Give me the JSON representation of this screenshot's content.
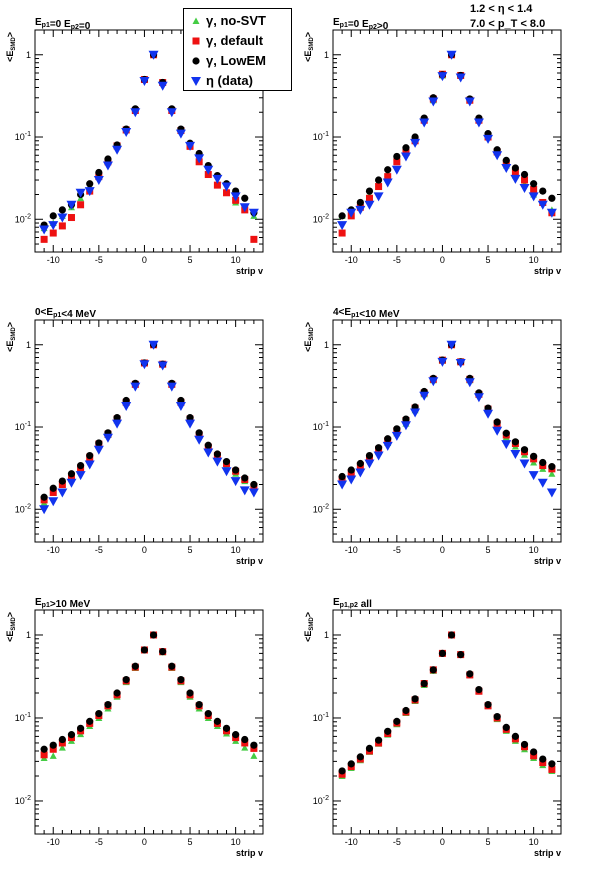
{
  "kinematics": {
    "line1": "1.2 < η < 1.4",
    "line2": "7.0 < p_T < 8.0"
  },
  "legend": [
    {
      "label": "γ, no-SVT",
      "color": "#44cc44",
      "marker": "triangle-up"
    },
    {
      "label": "γ, default",
      "color": "#ee1111",
      "marker": "square"
    },
    {
      "label": "γ, LowEM",
      "color": "#000000",
      "marker": "circle"
    },
    {
      "label": "η (data)",
      "color": "#1133ee",
      "marker": "triangle-down"
    }
  ],
  "chart_data": [
    {
      "type": "scatter",
      "title": "E_p1=0 E_p2=0",
      "xlabel": "strip v",
      "ylabel": "<E_SMD>",
      "xlim": [
        -12,
        13
      ],
      "ylim": [
        0.004,
        2.0
      ],
      "yscale": "log",
      "xticks": [
        -10,
        -5,
        0,
        5,
        10
      ],
      "x": [
        -11,
        -10,
        -9,
        -8,
        -7,
        -6,
        -5,
        -4,
        -3,
        -2,
        -1,
        0,
        1,
        2,
        3,
        4,
        5,
        6,
        7,
        8,
        9,
        10,
        11,
        12
      ],
      "series": [
        {
          "name": "γ, no-SVT",
          "values": [
            0.0078,
            0.009,
            0.011,
            0.014,
            0.018,
            0.025,
            0.035,
            0.05,
            0.08,
            0.12,
            0.22,
            0.5,
            1.0,
            0.46,
            0.21,
            0.12,
            0.079,
            0.053,
            0.037,
            0.027,
            0.021,
            0.016,
            0.013,
            0.011
          ]
        },
        {
          "name": "γ, default",
          "values": [
            0.0057,
            0.0068,
            0.0083,
            0.0105,
            0.015,
            0.022,
            0.033,
            0.05,
            0.078,
            0.122,
            0.21,
            0.5,
            1.0,
            0.46,
            0.21,
            0.12,
            0.077,
            0.05,
            0.035,
            0.026,
            0.021,
            0.017,
            0.013,
            0.0057
          ]
        },
        {
          "name": "γ, LowEM",
          "values": [
            0.0085,
            0.011,
            0.013,
            0.015,
            0.02,
            0.027,
            0.037,
            0.054,
            0.08,
            0.125,
            0.22,
            0.5,
            1.0,
            0.46,
            0.22,
            0.125,
            0.084,
            0.063,
            0.045,
            0.034,
            0.027,
            0.022,
            0.018,
            0.012
          ]
        },
        {
          "name": "η (data)",
          "values": [
            0.0075,
            0.0085,
            0.0105,
            0.015,
            0.021,
            0.022,
            0.03,
            0.045,
            0.07,
            0.115,
            0.2,
            0.48,
            1.0,
            0.42,
            0.2,
            0.11,
            0.078,
            0.055,
            0.04,
            0.031,
            0.025,
            0.019,
            0.014,
            0.012
          ]
        }
      ]
    },
    {
      "type": "scatter",
      "title": "E_p1=0 E_p2>0",
      "xlabel": "strip v",
      "ylabel": "<E_SMD>",
      "xlim": [
        -12,
        13
      ],
      "ylim": [
        0.004,
        2.0
      ],
      "yscale": "log",
      "xticks": [
        -10,
        -5,
        0,
        5,
        10
      ],
      "x": [
        -11,
        -10,
        -9,
        -8,
        -7,
        -6,
        -5,
        -4,
        -3,
        -2,
        -1,
        0,
        1,
        2,
        3,
        4,
        5,
        6,
        7,
        8,
        9,
        10,
        11,
        12
      ],
      "series": [
        {
          "name": "γ, no-SVT",
          "values": [
            0.011,
            0.013,
            0.016,
            0.02,
            0.027,
            0.036,
            0.05,
            0.065,
            0.09,
            0.16,
            0.28,
            0.56,
            1.0,
            0.56,
            0.28,
            0.165,
            0.1,
            0.065,
            0.045,
            0.034,
            0.027,
            0.02,
            0.016,
            0.013
          ]
        },
        {
          "name": "γ, default",
          "values": [
            0.0068,
            0.011,
            0.014,
            0.018,
            0.025,
            0.033,
            0.05,
            0.065,
            0.09,
            0.16,
            0.29,
            0.58,
            1.0,
            0.56,
            0.28,
            0.16,
            0.1,
            0.066,
            0.048,
            0.037,
            0.03,
            0.023,
            0.016,
            0.012
          ]
        },
        {
          "name": "γ, LowEM",
          "values": [
            0.011,
            0.013,
            0.016,
            0.022,
            0.03,
            0.04,
            0.058,
            0.074,
            0.1,
            0.17,
            0.3,
            0.57,
            1.0,
            0.56,
            0.29,
            0.17,
            0.11,
            0.07,
            0.052,
            0.042,
            0.035,
            0.027,
            0.022,
            0.018
          ]
        },
        {
          "name": "η (data)",
          "values": [
            0.0085,
            0.012,
            0.013,
            0.015,
            0.019,
            0.028,
            0.04,
            0.058,
            0.085,
            0.15,
            0.27,
            0.55,
            1.0,
            0.53,
            0.27,
            0.15,
            0.095,
            0.06,
            0.042,
            0.031,
            0.024,
            0.019,
            0.015,
            0.012
          ]
        }
      ]
    },
    {
      "type": "scatter",
      "title": "0<E_p1<4 MeV",
      "xlabel": "strip v",
      "ylabel": "<E_SMD>",
      "xlim": [
        -12,
        13
      ],
      "ylim": [
        0.004,
        2.0
      ],
      "yscale": "log",
      "xticks": [
        -10,
        -5,
        0,
        5,
        10
      ],
      "x": [
        -11,
        -10,
        -9,
        -8,
        -7,
        -6,
        -5,
        -4,
        -3,
        -2,
        -1,
        0,
        1,
        2,
        3,
        4,
        5,
        6,
        7,
        8,
        9,
        10,
        11,
        12
      ],
      "series": [
        {
          "name": "γ, no-SVT",
          "values": [
            0.012,
            0.016,
            0.02,
            0.025,
            0.031,
            0.042,
            0.06,
            0.08,
            0.12,
            0.2,
            0.33,
            0.6,
            1.0,
            0.58,
            0.33,
            0.2,
            0.125,
            0.078,
            0.055,
            0.043,
            0.034,
            0.027,
            0.022,
            0.018
          ]
        },
        {
          "name": "γ, default",
          "values": [
            0.013,
            0.016,
            0.02,
            0.025,
            0.032,
            0.043,
            0.062,
            0.082,
            0.125,
            0.2,
            0.33,
            0.6,
            1.0,
            0.58,
            0.33,
            0.2,
            0.125,
            0.08,
            0.057,
            0.045,
            0.036,
            0.029,
            0.023,
            0.019
          ]
        },
        {
          "name": "γ, LowEM",
          "values": [
            0.014,
            0.018,
            0.022,
            0.027,
            0.034,
            0.045,
            0.064,
            0.085,
            0.13,
            0.21,
            0.34,
            0.6,
            1.0,
            0.58,
            0.34,
            0.21,
            0.13,
            0.085,
            0.06,
            0.047,
            0.038,
            0.03,
            0.024,
            0.02
          ]
        },
        {
          "name": "η (data)",
          "values": [
            0.01,
            0.0125,
            0.016,
            0.021,
            0.026,
            0.035,
            0.053,
            0.074,
            0.11,
            0.18,
            0.31,
            0.58,
            1.0,
            0.56,
            0.31,
            0.18,
            0.11,
            0.07,
            0.049,
            0.038,
            0.029,
            0.022,
            0.017,
            0.016
          ]
        }
      ]
    },
    {
      "type": "scatter",
      "title": "4<E_p1<10 MeV",
      "xlabel": "strip v",
      "ylabel": "<E_SMD>",
      "xlim": [
        -12,
        13
      ],
      "ylim": [
        0.004,
        2.0
      ],
      "yscale": "log",
      "xticks": [
        -10,
        -5,
        0,
        5,
        10
      ],
      "x": [
        -11,
        -10,
        -9,
        -8,
        -7,
        -6,
        -5,
        -4,
        -3,
        -2,
        -1,
        0,
        1,
        2,
        3,
        4,
        5,
        6,
        7,
        8,
        9,
        10,
        11,
        12
      ],
      "series": [
        {
          "name": "γ, no-SVT",
          "values": [
            0.022,
            0.027,
            0.032,
            0.04,
            0.05,
            0.064,
            0.084,
            0.11,
            0.16,
            0.25,
            0.37,
            0.64,
            1.0,
            0.62,
            0.37,
            0.25,
            0.16,
            0.105,
            0.075,
            0.058,
            0.046,
            0.037,
            0.031,
            0.027
          ]
        },
        {
          "name": "γ, default",
          "values": [
            0.023,
            0.028,
            0.034,
            0.042,
            0.053,
            0.068,
            0.09,
            0.12,
            0.17,
            0.26,
            0.38,
            0.65,
            1.0,
            0.62,
            0.38,
            0.25,
            0.165,
            0.11,
            0.08,
            0.063,
            0.05,
            0.041,
            0.034,
            0.031
          ]
        },
        {
          "name": "γ, LowEM",
          "values": [
            0.025,
            0.03,
            0.036,
            0.045,
            0.056,
            0.072,
            0.095,
            0.125,
            0.175,
            0.27,
            0.39,
            0.65,
            1.0,
            0.62,
            0.39,
            0.26,
            0.17,
            0.115,
            0.084,
            0.066,
            0.053,
            0.044,
            0.037,
            0.033
          ]
        },
        {
          "name": "η (data)",
          "values": [
            0.02,
            0.023,
            0.028,
            0.036,
            0.045,
            0.059,
            0.078,
            0.105,
            0.15,
            0.24,
            0.36,
            0.62,
            1.0,
            0.6,
            0.35,
            0.23,
            0.145,
            0.09,
            0.062,
            0.047,
            0.036,
            0.026,
            0.021,
            0.016
          ]
        }
      ]
    },
    {
      "type": "scatter",
      "title": "E_p1>10 MeV",
      "xlabel": "strip v",
      "ylabel": "<E_SMD>",
      "xlim": [
        -12,
        13
      ],
      "ylim": [
        0.004,
        2.0
      ],
      "yscale": "log",
      "xticks": [
        -10,
        -5,
        0,
        5,
        10
      ],
      "x": [
        -11,
        -10,
        -9,
        -8,
        -7,
        -6,
        -5,
        -4,
        -3,
        -2,
        -1,
        0,
        1,
        2,
        3,
        4,
        5,
        6,
        7,
        8,
        9,
        10,
        11,
        12
      ],
      "series": [
        {
          "name": "γ, no-SVT",
          "values": [
            0.033,
            0.035,
            0.044,
            0.053,
            0.064,
            0.08,
            0.1,
            0.13,
            0.18,
            0.27,
            0.4,
            0.65,
            1.0,
            0.62,
            0.4,
            0.27,
            0.18,
            0.13,
            0.1,
            0.08,
            0.065,
            0.053,
            0.044,
            0.035
          ]
        },
        {
          "name": "γ, default",
          "values": [
            0.036,
            0.042,
            0.05,
            0.058,
            0.07,
            0.086,
            0.107,
            0.14,
            0.19,
            0.28,
            0.41,
            0.66,
            1.0,
            0.63,
            0.41,
            0.28,
            0.19,
            0.14,
            0.107,
            0.086,
            0.07,
            0.058,
            0.05,
            0.043
          ]
        },
        {
          "name": "γ, LowEM",
          "values": [
            0.042,
            0.047,
            0.055,
            0.063,
            0.075,
            0.091,
            0.113,
            0.145,
            0.2,
            0.29,
            0.42,
            0.66,
            1.0,
            0.63,
            0.42,
            0.29,
            0.2,
            0.145,
            0.113,
            0.091,
            0.075,
            0.063,
            0.055,
            0.047
          ]
        },
        {
          "name": "η (data)",
          "values": []
        }
      ]
    },
    {
      "type": "scatter",
      "title": "E_p1,p2 all",
      "xlabel": "strip v",
      "ylabel": "<E_SMD>",
      "xlim": [
        -12,
        13
      ],
      "ylim": [
        0.004,
        2.0
      ],
      "yscale": "log",
      "xticks": [
        -10,
        -5,
        0,
        5,
        10
      ],
      "x": [
        -11,
        -10,
        -9,
        -8,
        -7,
        -6,
        -5,
        -4,
        -3,
        -2,
        -1,
        0,
        1,
        2,
        3,
        4,
        5,
        6,
        7,
        8,
        9,
        10,
        11,
        12
      ],
      "series": [
        {
          "name": "γ, no-SVT",
          "values": [
            0.02,
            0.025,
            0.031,
            0.039,
            0.049,
            0.063,
            0.084,
            0.115,
            0.16,
            0.25,
            0.37,
            0.6,
            1.0,
            0.58,
            0.33,
            0.21,
            0.14,
            0.097,
            0.07,
            0.053,
            0.042,
            0.033,
            0.027,
            0.023
          ]
        },
        {
          "name": "γ, default",
          "values": [
            0.021,
            0.026,
            0.032,
            0.04,
            0.05,
            0.065,
            0.087,
            0.118,
            0.165,
            0.26,
            0.38,
            0.6,
            1.0,
            0.58,
            0.33,
            0.21,
            0.14,
            0.1,
            0.073,
            0.056,
            0.045,
            0.035,
            0.029,
            0.024
          ]
        },
        {
          "name": "γ, LowEM",
          "values": [
            0.023,
            0.028,
            0.034,
            0.043,
            0.054,
            0.069,
            0.091,
            0.123,
            0.17,
            0.26,
            0.38,
            0.6,
            1.0,
            0.58,
            0.34,
            0.22,
            0.145,
            0.104,
            0.077,
            0.06,
            0.048,
            0.039,
            0.032,
            0.028
          ]
        },
        {
          "name": "η (data)",
          "values": []
        }
      ]
    }
  ]
}
